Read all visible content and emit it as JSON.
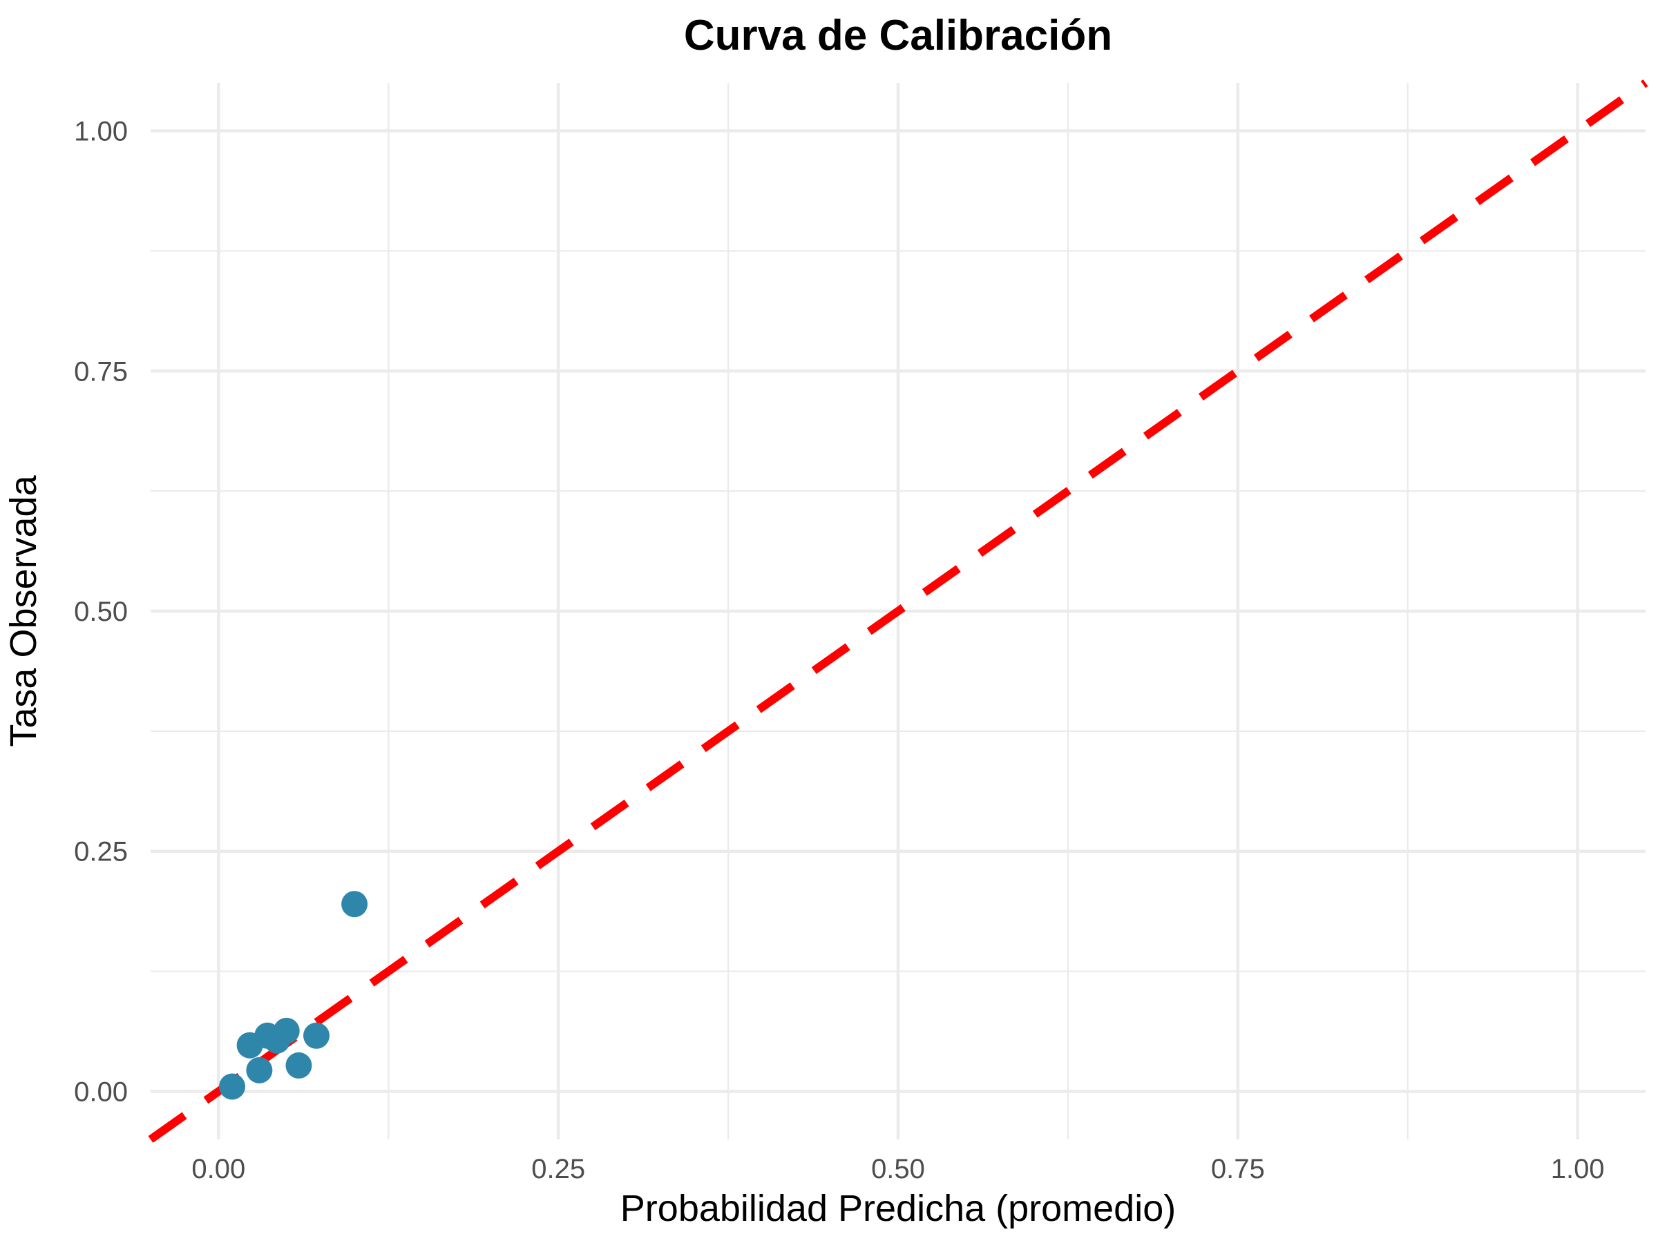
{
  "chart_data": {
    "type": "scatter",
    "title": "Curva de Calibración",
    "xlabel": "Probabilidad Predicha (promedio)",
    "ylabel": "Tasa Observada",
    "xlim": [
      -0.05,
      1.05
    ],
    "ylim": [
      -0.05,
      1.05
    ],
    "x_ticks": [
      0,
      0.25,
      0.5,
      0.75,
      1
    ],
    "x_tick_labels": [
      "0.00",
      "0.25",
      "0.50",
      "0.75",
      "1.00"
    ],
    "y_ticks": [
      0,
      0.25,
      0.5,
      0.75,
      1
    ],
    "y_tick_labels": [
      "0.00",
      "0.25",
      "0.50",
      "0.75",
      "1.00"
    ],
    "grid": true,
    "legend": "none",
    "series": [
      {
        "color": "#2E86AB",
        "points": [
          {
            "x": 0.01,
            "y": 0.005
          },
          {
            "x": 0.023,
            "y": 0.048
          },
          {
            "x": 0.03,
            "y": 0.022
          },
          {
            "x": 0.036,
            "y": 0.058
          },
          {
            "x": 0.043,
            "y": 0.053
          },
          {
            "x": 0.05,
            "y": 0.063
          },
          {
            "x": 0.059,
            "y": 0.027
          },
          {
            "x": 0.072,
            "y": 0.058
          },
          {
            "x": 0.1,
            "y": 0.195
          }
        ]
      }
    ],
    "reference_line": {
      "x": [
        -0.05,
        1.05
      ],
      "y": [
        -0.05,
        1.05
      ],
      "color": "#FF0000",
      "style": "dashed"
    }
  }
}
